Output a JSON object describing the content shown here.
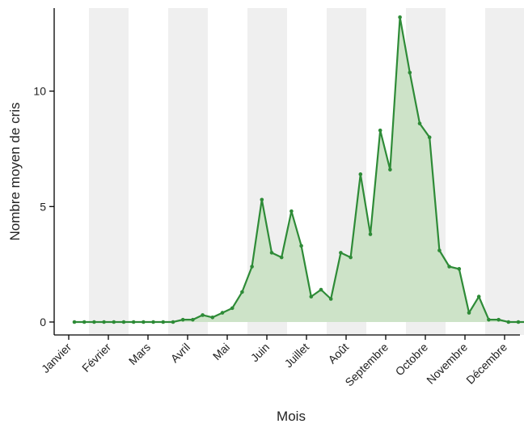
{
  "chart_data": {
    "type": "area",
    "title": "",
    "xlabel": "Mois",
    "ylabel": "Nombre moyen de cris",
    "ylim": [
      0,
      13
    ],
    "yticks": [
      0,
      5,
      10
    ],
    "months": [
      "Janvier",
      "Février",
      "Mars",
      "Avril",
      "Mai",
      "Juin",
      "Juillet",
      "Août",
      "Septembre",
      "Octobre",
      "Novembre",
      "Décembre"
    ],
    "alternating_shading": true,
    "colors": {
      "line": "#2e8b37",
      "fill": "#cde3c8",
      "band": "#efefef"
    },
    "series": [
      {
        "values": [
          0,
          0,
          0,
          0,
          0,
          0,
          0,
          0,
          0,
          0,
          0,
          0.1,
          0.1,
          0.3,
          0.2,
          0.4,
          0.6,
          1.3,
          2.4,
          5.3,
          3,
          2.8,
          4.8,
          3.3,
          1.1,
          1.4,
          1,
          3,
          2.8,
          6.4,
          3.8,
          8.3,
          6.6,
          13.2,
          10.8,
          8.6,
          8,
          3.1,
          2.4,
          2.3,
          0.4,
          1.1,
          0.1,
          0.1,
          0,
          0,
          0,
          0,
          0,
          0
        ]
      }
    ]
  }
}
